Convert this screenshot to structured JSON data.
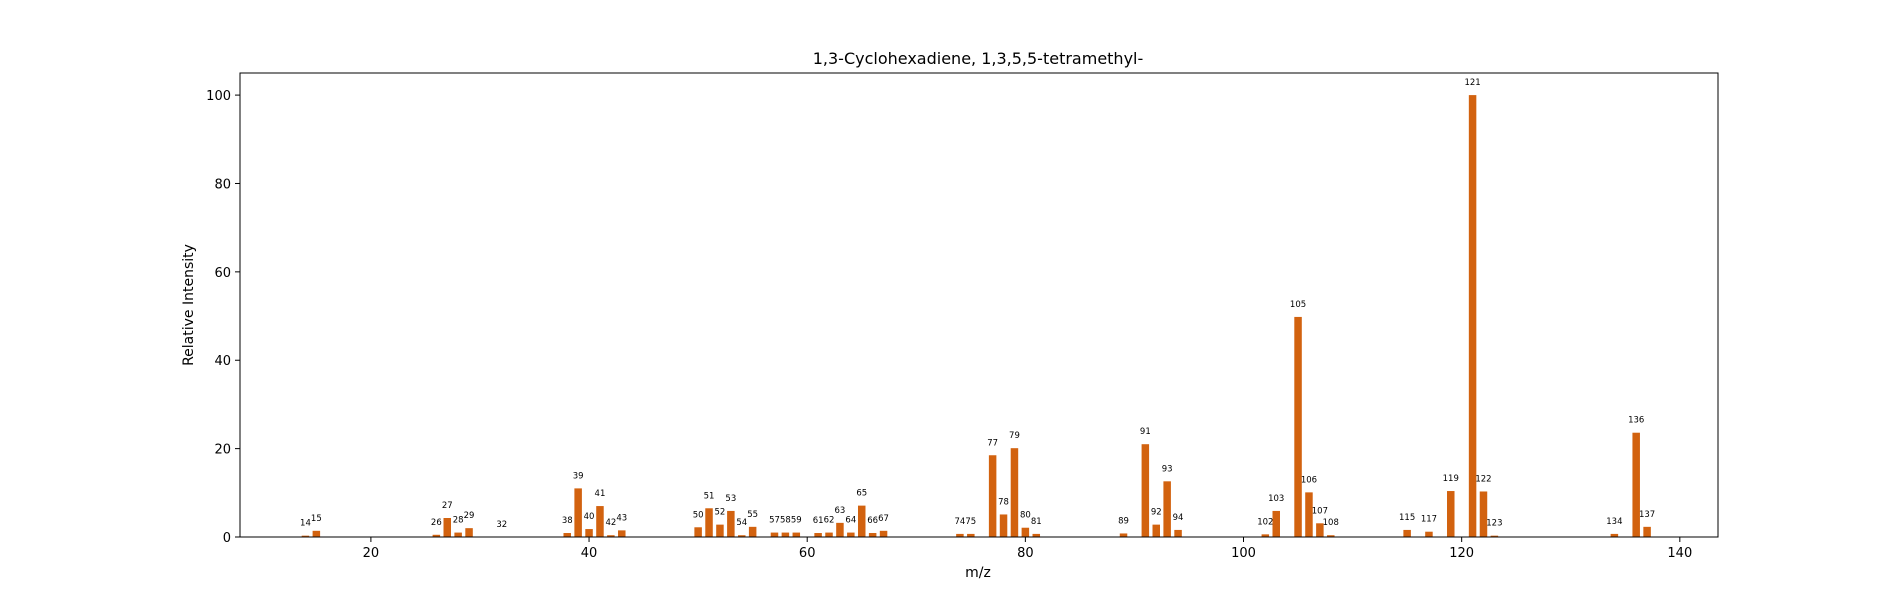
{
  "chart_data": {
    "type": "bar",
    "title": "1,3-Cyclohexadiene, 1,3,5,5-tetramethyl-",
    "xlabel": "m/z",
    "ylabel": "Relative Intensity",
    "xlim": [
      8,
      143.5
    ],
    "ylim": [
      0,
      105
    ],
    "xticks": [
      20,
      40,
      60,
      80,
      100,
      120,
      140
    ],
    "yticks": [
      0,
      20,
      40,
      60,
      80,
      100
    ],
    "grid": false,
    "bar_color": "#d2620f",
    "points": [
      {
        "x": 14,
        "y": 0.3
      },
      {
        "x": 15,
        "y": 1.4
      },
      {
        "x": 26,
        "y": 0.5
      },
      {
        "x": 27,
        "y": 4.3
      },
      {
        "x": 28,
        "y": 1.0
      },
      {
        "x": 29,
        "y": 2.0
      },
      {
        "x": 32,
        "y": 0.0
      },
      {
        "x": 38,
        "y": 0.9
      },
      {
        "x": 39,
        "y": 11.0
      },
      {
        "x": 40,
        "y": 1.8
      },
      {
        "x": 41,
        "y": 7.0
      },
      {
        "x": 42,
        "y": 0.4
      },
      {
        "x": 43,
        "y": 1.5
      },
      {
        "x": 50,
        "y": 2.2
      },
      {
        "x": 51,
        "y": 6.5
      },
      {
        "x": 52,
        "y": 2.8
      },
      {
        "x": 53,
        "y": 5.9
      },
      {
        "x": 54,
        "y": 0.4
      },
      {
        "x": 55,
        "y": 2.3
      },
      {
        "x": 57,
        "y": 1.0
      },
      {
        "x": 58,
        "y": 1.0
      },
      {
        "x": 59,
        "y": 1.0
      },
      {
        "x": 61,
        "y": 0.9
      },
      {
        "x": 62,
        "y": 1.0
      },
      {
        "x": 63,
        "y": 3.2
      },
      {
        "x": 64,
        "y": 1.0
      },
      {
        "x": 65,
        "y": 7.1
      },
      {
        "x": 66,
        "y": 0.9
      },
      {
        "x": 67,
        "y": 1.4
      },
      {
        "x": 74,
        "y": 0.7
      },
      {
        "x": 75,
        "y": 0.7
      },
      {
        "x": 77,
        "y": 18.5
      },
      {
        "x": 78,
        "y": 5.1
      },
      {
        "x": 79,
        "y": 20.1
      },
      {
        "x": 80,
        "y": 2.1
      },
      {
        "x": 81,
        "y": 0.7
      },
      {
        "x": 89,
        "y": 0.8
      },
      {
        "x": 91,
        "y": 21.0
      },
      {
        "x": 92,
        "y": 2.8
      },
      {
        "x": 93,
        "y": 12.6
      },
      {
        "x": 94,
        "y": 1.6
      },
      {
        "x": 102,
        "y": 0.6
      },
      {
        "x": 103,
        "y": 5.9
      },
      {
        "x": 105,
        "y": 49.8
      },
      {
        "x": 106,
        "y": 10.1
      },
      {
        "x": 107,
        "y": 3.1
      },
      {
        "x": 108,
        "y": 0.4
      },
      {
        "x": 115,
        "y": 1.6
      },
      {
        "x": 117,
        "y": 1.2
      },
      {
        "x": 119,
        "y": 10.4
      },
      {
        "x": 121,
        "y": 100.0
      },
      {
        "x": 122,
        "y": 10.3
      },
      {
        "x": 123,
        "y": 0.3
      },
      {
        "x": 134,
        "y": 0.7
      },
      {
        "x": 136,
        "y": 23.6
      },
      {
        "x": 137,
        "y": 2.3
      }
    ]
  }
}
